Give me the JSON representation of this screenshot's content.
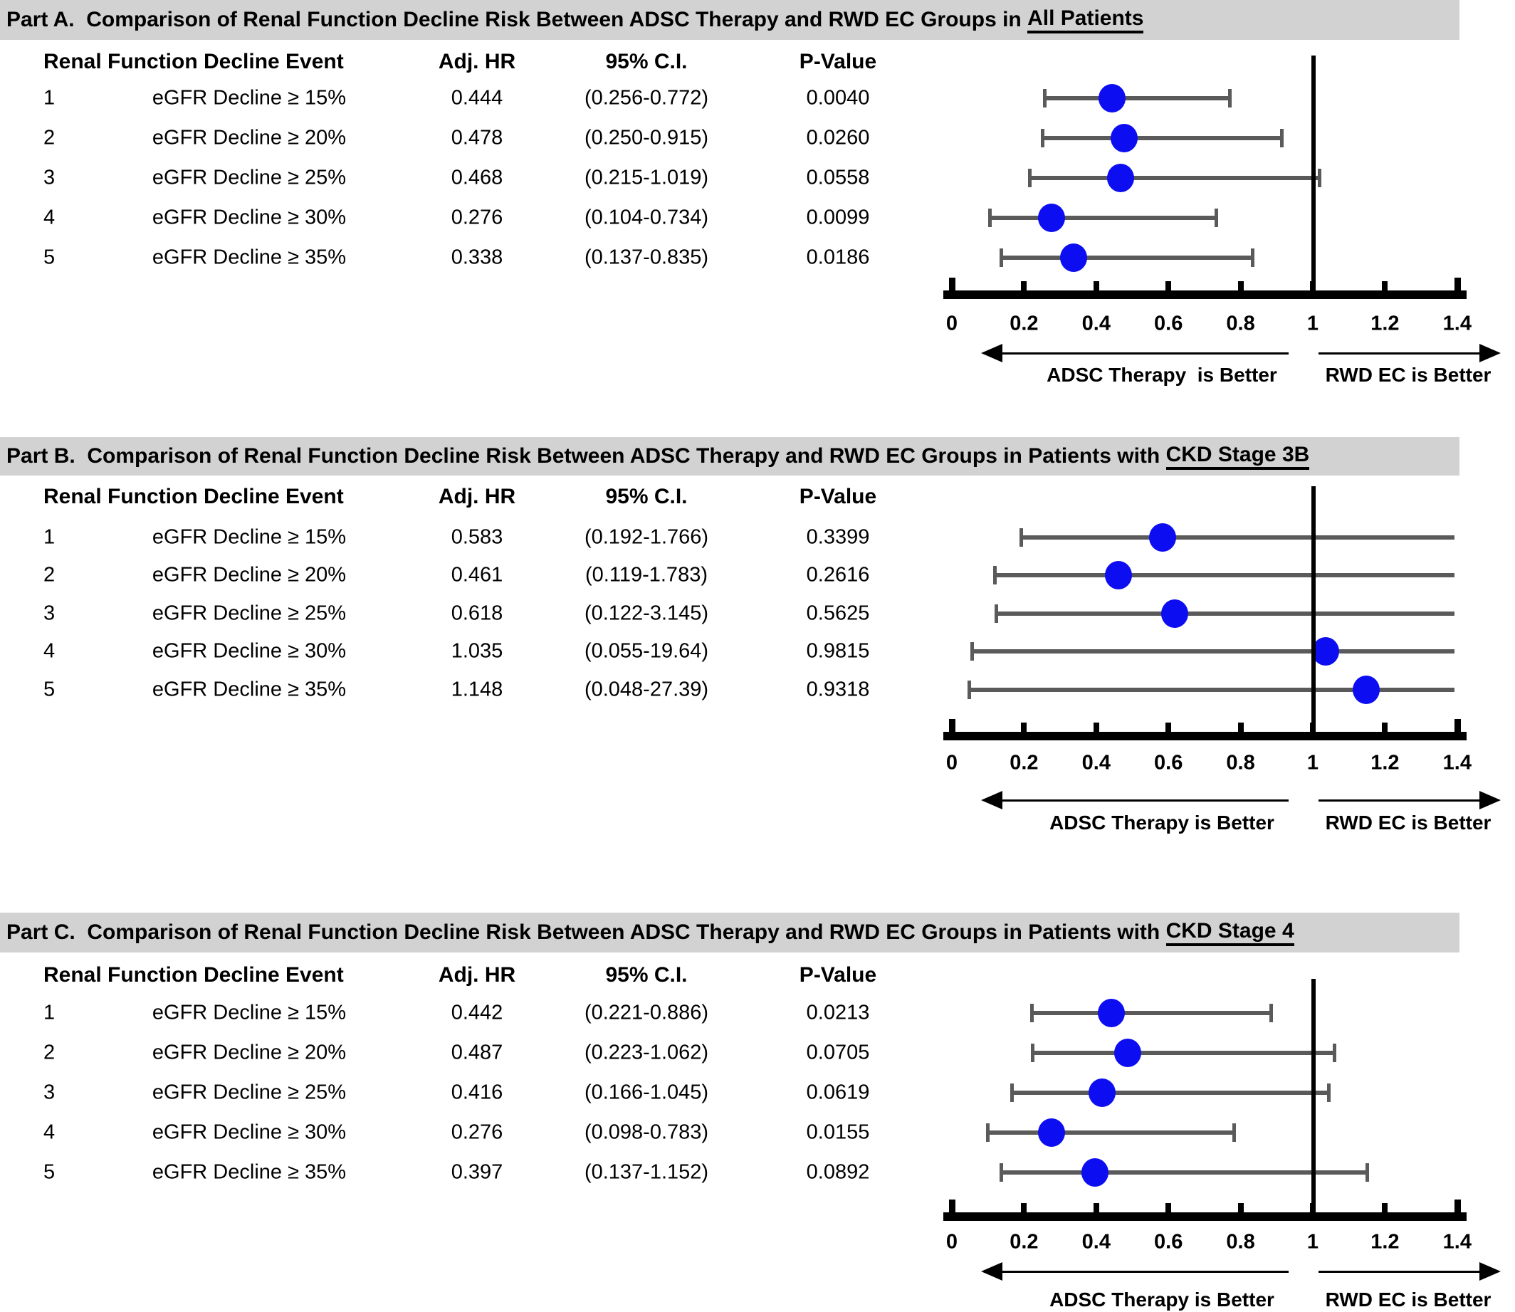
{
  "figure": {
    "table_columns": [
      "Renal Function Decline Event",
      "Adj. HR",
      "95% C.I.",
      "P-Value"
    ],
    "axis": {
      "tick_labels": [
        "0",
        "0.2",
        "0.4",
        "0.6",
        "0.8",
        "1",
        "1.2",
        "1.4"
      ],
      "tick_values": [
        0,
        0.2,
        0.4,
        0.6,
        0.8,
        1,
        1.2,
        1.4
      ],
      "xlim": [
        0,
        1.45
      ],
      "reference_value": 1
    },
    "colors": {
      "dot_blue": "#0d0df2",
      "whisker_gray": "#5a5a5a",
      "title_bar_gray": "#d2d2d2",
      "axis_black": "#000000"
    },
    "parts": [
      {
        "id": "A",
        "title_prefix": "Part A.  Comparison of Renal Function Decline Risk Between ADSC Therapy and RWD EC Groups in ",
        "title_underline": "All Patients",
        "left_arrow_label": "ADSC Therapy  is Better",
        "right_arrow_label": "RWD EC is Better",
        "rows": [
          {
            "num": "1",
            "event": "eGFR Decline ≥ 15%",
            "hr": "0.444",
            "ci": "(0.256-0.772)",
            "p": "0.0040",
            "hr_value": 0.444,
            "ci_low": 0.256,
            "ci_high": 0.772
          },
          {
            "num": "2",
            "event": "eGFR Decline ≥ 20%",
            "hr": "0.478",
            "ci": "(0.250-0.915)",
            "p": "0.0260",
            "hr_value": 0.478,
            "ci_low": 0.25,
            "ci_high": 0.915
          },
          {
            "num": "3",
            "event": "eGFR Decline ≥ 25%",
            "hr": "0.468",
            "ci": "(0.215-1.019)",
            "p": "0.0558",
            "hr_value": 0.468,
            "ci_low": 0.215,
            "ci_high": 1.019
          },
          {
            "num": "4",
            "event": "eGFR Decline ≥ 30%",
            "hr": "0.276",
            "ci": "(0.104-0.734)",
            "p": "0.0099",
            "hr_value": 0.276,
            "ci_low": 0.104,
            "ci_high": 0.734
          },
          {
            "num": "5",
            "event": "eGFR Decline ≥ 35%",
            "hr": "0.338",
            "ci": "(0.137-0.835)",
            "p": "0.0186",
            "hr_value": 0.338,
            "ci_low": 0.137,
            "ci_high": 0.835
          }
        ]
      },
      {
        "id": "B",
        "title_prefix": "Part B.  Comparison of Renal Function Decline Risk Between ADSC Therapy and RWD EC Groups in Patients with ",
        "title_underline": "CKD Stage 3B",
        "left_arrow_label": "ADSC Therapy is Better",
        "right_arrow_label": "RWD EC is Better",
        "rows": [
          {
            "num": "1",
            "event": "eGFR Decline ≥ 15%",
            "hr": "0.583",
            "ci": "(0.192-1.766)",
            "p": "0.3399",
            "hr_value": 0.583,
            "ci_low": 0.192,
            "ci_high": 1.766
          },
          {
            "num": "2",
            "event": "eGFR Decline ≥ 20%",
            "hr": "0.461",
            "ci": "(0.119-1.783)",
            "p": "0.2616",
            "hr_value": 0.461,
            "ci_low": 0.119,
            "ci_high": 1.783
          },
          {
            "num": "3",
            "event": "eGFR Decline ≥ 25%",
            "hr": "0.618",
            "ci": "(0.122-3.145)",
            "p": "0.5625",
            "hr_value": 0.618,
            "ci_low": 0.122,
            "ci_high": 3.145
          },
          {
            "num": "4",
            "event": "eGFR Decline ≥ 30%",
            "hr": "1.035",
            "ci": "(0.055-19.64)",
            "p": "0.9815",
            "hr_value": 1.035,
            "ci_low": 0.055,
            "ci_high": 19.64
          },
          {
            "num": "5",
            "event": "eGFR Decline ≥ 35%",
            "hr": "1.148",
            "ci": "(0.048-27.39)",
            "p": "0.9318",
            "hr_value": 1.148,
            "ci_low": 0.048,
            "ci_high": 27.39
          }
        ]
      },
      {
        "id": "C",
        "title_prefix": "Part C.  Comparison of Renal Function Decline Risk Between ADSC Therapy and RWD EC Groups in Patients with ",
        "title_underline": "CKD Stage 4",
        "left_arrow_label": "ADSC Therapy is Better",
        "right_arrow_label": "RWD EC is Better",
        "rows": [
          {
            "num": "1",
            "event": "eGFR Decline ≥ 15%",
            "hr": "0.442",
            "ci": "(0.221-0.886)",
            "p": "0.0213",
            "hr_value": 0.442,
            "ci_low": 0.221,
            "ci_high": 0.886
          },
          {
            "num": "2",
            "event": "eGFR Decline ≥ 20%",
            "hr": "0.487",
            "ci": "(0.223-1.062)",
            "p": "0.0705",
            "hr_value": 0.487,
            "ci_low": 0.223,
            "ci_high": 1.062
          },
          {
            "num": "3",
            "event": "eGFR Decline ≥ 25%",
            "hr": "0.416",
            "ci": "(0.166-1.045)",
            "p": "0.0619",
            "hr_value": 0.416,
            "ci_low": 0.166,
            "ci_high": 1.045
          },
          {
            "num": "4",
            "event": "eGFR Decline ≥ 30%",
            "hr": "0.276",
            "ci": "(0.098-0.783)",
            "p": "0.0155",
            "hr_value": 0.276,
            "ci_low": 0.098,
            "ci_high": 0.783
          },
          {
            "num": "5",
            "event": "eGFR Decline ≥ 35%",
            "hr": "0.397",
            "ci": "(0.137-1.152)",
            "p": "0.0892",
            "hr_value": 0.397,
            "ci_low": 0.137,
            "ci_high": 1.152
          }
        ]
      }
    ]
  },
  "chart_data": [
    {
      "type": "scatter",
      "subtype": "forest-plot",
      "title": "Part A.  Comparison of Renal Function Decline Risk Between ADSC Therapy and RWD EC Groups in All Patients",
      "categories": [
        "eGFR Decline ≥ 15%",
        "eGFR Decline ≥ 20%",
        "eGFR Decline ≥ 25%",
        "eGFR Decline ≥ 30%",
        "eGFR Decline ≥ 35%"
      ],
      "series": [
        {
          "name": "Adj. HR",
          "values": [
            0.444,
            0.478,
            0.468,
            0.276,
            0.338
          ],
          "ci_low": [
            0.256,
            0.25,
            0.215,
            0.104,
            0.137
          ],
          "ci_high": [
            0.772,
            0.915,
            1.019,
            0.734,
            0.835
          ],
          "p_values": [
            0.004,
            0.026,
            0.0558,
            0.0099,
            0.0186
          ]
        }
      ],
      "xlabel": "",
      "ylabel": "",
      "xlim": [
        0,
        1.45
      ],
      "x_ticks": [
        0,
        0.2,
        0.4,
        0.6,
        0.8,
        1,
        1.2,
        1.4
      ],
      "reference_line_x": 1,
      "annotations": [
        "ADSC Therapy  is Better",
        "RWD EC is Better"
      ],
      "grid": false,
      "legend": "none"
    },
    {
      "type": "scatter",
      "subtype": "forest-plot",
      "title": "Part B.  Comparison of Renal Function Decline Risk Between ADSC Therapy and RWD EC Groups in Patients with CKD Stage 3B",
      "categories": [
        "eGFR Decline ≥ 15%",
        "eGFR Decline ≥ 20%",
        "eGFR Decline ≥ 25%",
        "eGFR Decline ≥ 30%",
        "eGFR Decline ≥ 35%"
      ],
      "series": [
        {
          "name": "Adj. HR",
          "values": [
            0.583,
            0.461,
            0.618,
            1.035,
            1.148
          ],
          "ci_low": [
            0.192,
            0.119,
            0.122,
            0.055,
            0.048
          ],
          "ci_high": [
            1.766,
            1.783,
            3.145,
            19.64,
            27.39
          ],
          "p_values": [
            0.3399,
            0.2616,
            0.5625,
            0.9815,
            0.9318
          ]
        }
      ],
      "xlabel": "",
      "ylabel": "",
      "xlim": [
        0,
        1.45
      ],
      "x_ticks": [
        0,
        0.2,
        0.4,
        0.6,
        0.8,
        1,
        1.2,
        1.4
      ],
      "reference_line_x": 1,
      "annotations": [
        "ADSC Therapy is Better",
        "RWD EC is Better"
      ],
      "grid": false,
      "legend": "none"
    },
    {
      "type": "scatter",
      "subtype": "forest-plot",
      "title": "Part C.  Comparison of Renal Function Decline Risk Between ADSC Therapy and RWD EC Groups in Patients with CKD Stage 4",
      "categories": [
        "eGFR Decline ≥ 15%",
        "eGFR Decline ≥ 20%",
        "eGFR Decline ≥ 25%",
        "eGFR Decline ≥ 30%",
        "eGFR Decline ≥ 35%"
      ],
      "series": [
        {
          "name": "Adj. HR",
          "values": [
            0.442,
            0.487,
            0.416,
            0.276,
            0.397
          ],
          "ci_low": [
            0.221,
            0.223,
            0.166,
            0.098,
            0.137
          ],
          "ci_high": [
            0.886,
            1.062,
            1.045,
            0.783,
            1.152
          ],
          "p_values": [
            0.0213,
            0.0705,
            0.0619,
            0.0155,
            0.0892
          ]
        }
      ],
      "xlabel": "",
      "ylabel": "",
      "xlim": [
        0,
        1.45
      ],
      "x_ticks": [
        0,
        0.2,
        0.4,
        0.6,
        0.8,
        1,
        1.2,
        1.4
      ],
      "reference_line_x": 1,
      "annotations": [
        "ADSC Therapy is Better",
        "RWD EC is Better"
      ],
      "grid": false,
      "legend": "none"
    }
  ]
}
